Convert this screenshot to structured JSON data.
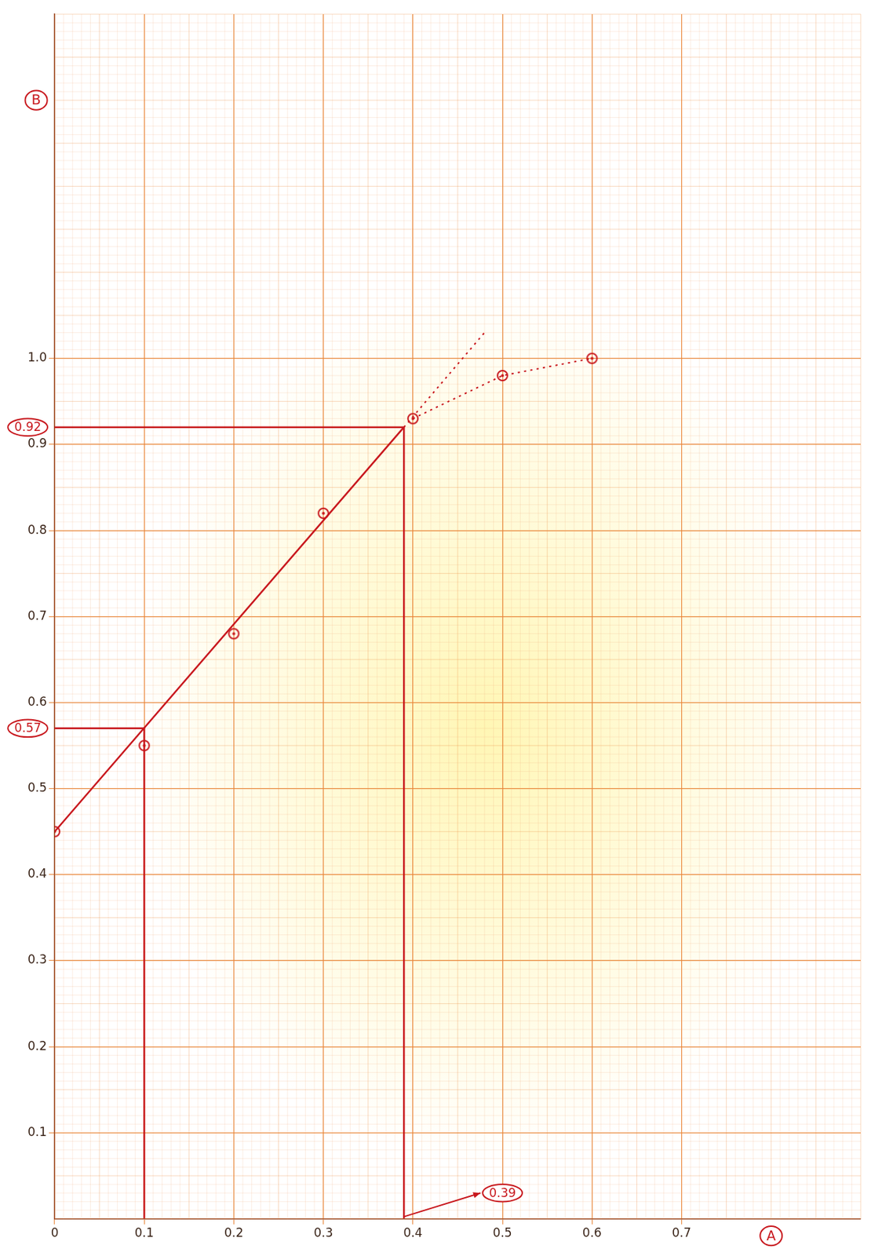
{
  "chart_data": {
    "type": "scatter",
    "x_label": "A",
    "y_label": "B",
    "xlim": [
      0,
      0.9
    ],
    "xticks": [
      0,
      0.1,
      0.2,
      0.3,
      0.4,
      0.5,
      0.6,
      0.7
    ],
    "ylim": [
      0,
      1.4
    ],
    "yticks": [
      0.1,
      0.2,
      0.3,
      0.4,
      0.5,
      0.6,
      0.7,
      0.8,
      0.9,
      {
        "value": 1,
        "label": "1.0"
      }
    ],
    "grid": true,
    "series": [
      {
        "color": "#c8171d",
        "marker": "circle",
        "line_style": "none",
        "x": [
          0,
          0.1,
          0.2,
          0.3,
          0.4,
          0.5,
          0.6
        ],
        "values": [
          0.45,
          0.55,
          0.68,
          0.82,
          0.93,
          0.98,
          1.0
        ]
      },
      {
        "color": "#c8171d",
        "marker": "none",
        "line_style": "solid",
        "x": [
          0,
          0.39
        ],
        "values": [
          0.45,
          0.92
        ]
      },
      {
        "color": "#c8171d",
        "marker": "none",
        "line_style": "dotted",
        "x": [
          0.39,
          0.48
        ],
        "values": [
          0.92,
          1.03
        ]
      },
      {
        "color": "#c8171d",
        "marker": "none",
        "line_style": "dotted",
        "x": [
          0.4,
          0.5,
          0.6
        ],
        "values": [
          0.93,
          0.98,
          1.0
        ]
      },
      {
        "color": "#c8171d",
        "marker": "none",
        "line_style": "solid",
        "x": [
          0.1,
          0.1,
          0
        ],
        "values": [
          0,
          0.57,
          0.57
        ]
      },
      {
        "color": "#c8171d",
        "marker": "none",
        "line_style": "solid",
        "x": [
          0.39,
          0.39,
          0
        ],
        "values": [
          0,
          0.92,
          0.92
        ]
      }
    ],
    "annotations": [
      {
        "text": "0.92",
        "x": 0,
        "y": 0.92
      },
      {
        "text": "0.57",
        "x": 0,
        "y": 0.57
      },
      {
        "text": "0.39",
        "x": 0.5,
        "y": 0.03,
        "target": {
          "x": 0.39,
          "y": 0
        }
      }
    ]
  }
}
